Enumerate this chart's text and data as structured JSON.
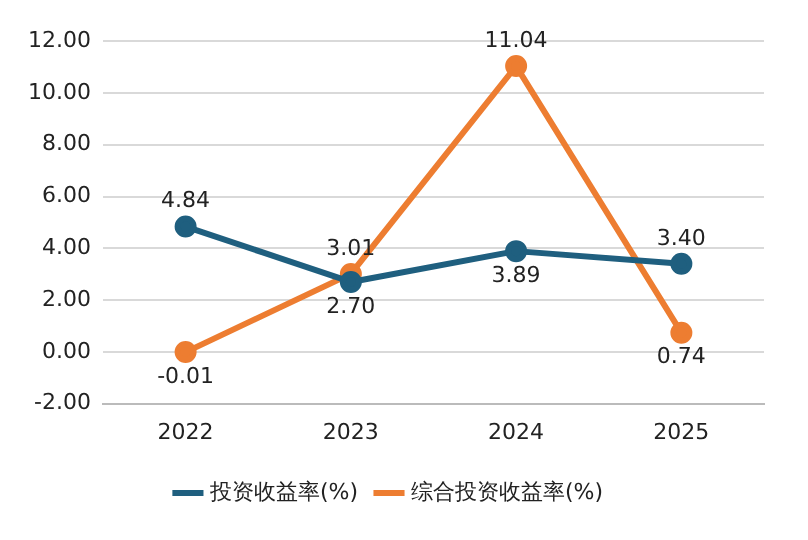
{
  "chart_data": {
    "type": "line",
    "categories": [
      "2022",
      "2023",
      "2024",
      "2025"
    ],
    "series": [
      {
        "name": "投资收益率(%)",
        "color": "#1f5f7f",
        "values": [
          4.84,
          2.7,
          3.89,
          3.4
        ],
        "value_labels": [
          "4.84",
          "2.70",
          "3.89",
          "3.40"
        ]
      },
      {
        "name": "综合投资收益率(%)",
        "color": "#ed7d31",
        "values": [
          -0.01,
          3.01,
          11.04,
          0.74
        ],
        "value_labels": [
          "-0.01",
          "3.01",
          "11.04",
          "0.74"
        ]
      }
    ],
    "ylim": [
      -2,
      12
    ],
    "yticks": [
      {
        "value": -2,
        "label": "-2.00"
      },
      {
        "value": 0,
        "label": "0.00"
      },
      {
        "value": 2,
        "label": "2.00"
      },
      {
        "value": 4,
        "label": "4.00"
      },
      {
        "value": 6,
        "label": "6.00"
      },
      {
        "value": 8,
        "label": "8.00"
      },
      {
        "value": 10,
        "label": "10.00"
      },
      {
        "value": 12,
        "label": "12.00"
      }
    ],
    "grid": "y",
    "legend": "bottom",
    "marker": "circle",
    "line_style": "solid"
  }
}
